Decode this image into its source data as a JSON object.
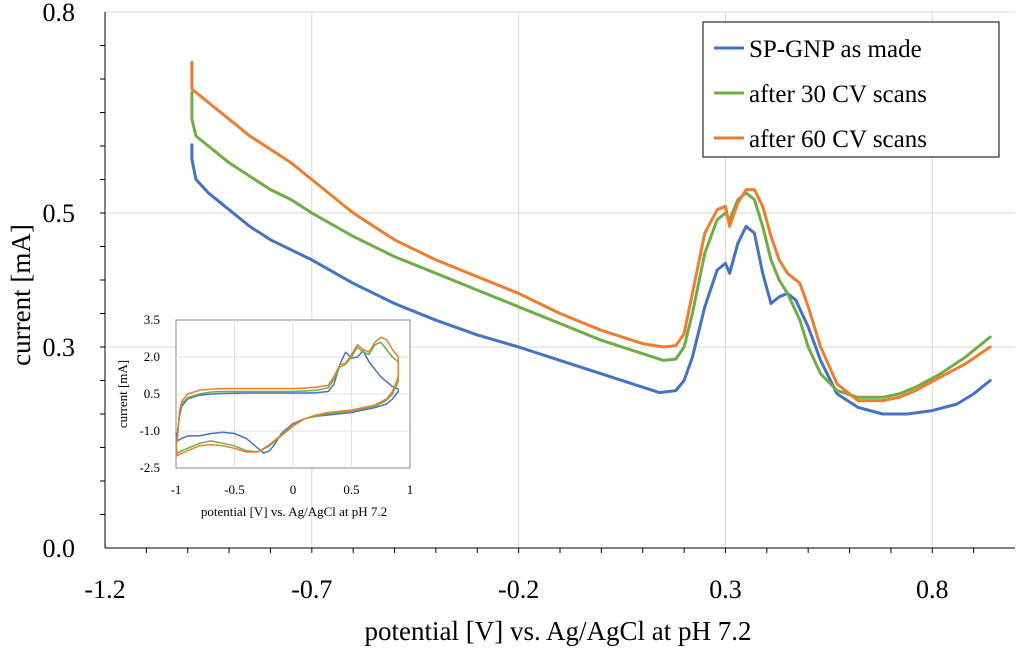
{
  "chart_data": {
    "type": "line",
    "xlabel": "potential [V] vs. Ag/AgCl at pH 7.2",
    "ylabel": "current [mA]",
    "xlim": [
      -1.2,
      1.0
    ],
    "ylim": [
      0.0,
      0.8
    ],
    "x_ticks": [
      "-1.2",
      "-0.7",
      "-0.2",
      "0.3",
      "0.8"
    ],
    "x_tick_values": [
      -1.2,
      -0.7,
      -0.2,
      0.3,
      0.8
    ],
    "y_ticks": [
      "0.0",
      "0.3",
      "0.5",
      "0.8"
    ],
    "y_tick_values": [
      0.0,
      0.3,
      0.5,
      0.8
    ],
    "grid": true,
    "legend_position": "top-right",
    "series": [
      {
        "name": "SP-GNP as made",
        "color": "#4472C4",
        "x": [
          -0.99,
          -0.99,
          -0.98,
          -0.95,
          -0.9,
          -0.85,
          -0.8,
          -0.7,
          -0.6,
          -0.5,
          -0.4,
          -0.3,
          -0.2,
          -0.1,
          0.0,
          0.1,
          0.14,
          0.18,
          0.2,
          0.22,
          0.25,
          0.28,
          0.3,
          0.31,
          0.33,
          0.35,
          0.37,
          0.39,
          0.41,
          0.43,
          0.45,
          0.47,
          0.5,
          0.53,
          0.57,
          0.62,
          0.68,
          0.74,
          0.8,
          0.86,
          0.9,
          0.94
        ],
        "y": [
          0.602,
          0.58,
          0.55,
          0.53,
          0.505,
          0.48,
          0.46,
          0.43,
          0.395,
          0.365,
          0.34,
          0.318,
          0.3,
          0.28,
          0.26,
          0.24,
          0.232,
          0.235,
          0.25,
          0.285,
          0.36,
          0.415,
          0.425,
          0.41,
          0.455,
          0.48,
          0.47,
          0.41,
          0.365,
          0.375,
          0.38,
          0.37,
          0.33,
          0.28,
          0.23,
          0.21,
          0.2,
          0.2,
          0.205,
          0.215,
          0.23,
          0.25
        ]
      },
      {
        "name": "after 30 CV scans",
        "color": "#70AD47",
        "x": [
          -0.99,
          -0.99,
          -0.98,
          -0.95,
          -0.9,
          -0.85,
          -0.8,
          -0.75,
          -0.7,
          -0.6,
          -0.5,
          -0.4,
          -0.3,
          -0.2,
          -0.1,
          0.0,
          0.1,
          0.15,
          0.18,
          0.2,
          0.22,
          0.25,
          0.28,
          0.3,
          0.31,
          0.33,
          0.35,
          0.37,
          0.39,
          0.41,
          0.43,
          0.45,
          0.48,
          0.5,
          0.53,
          0.57,
          0.62,
          0.68,
          0.72,
          0.76,
          0.82,
          0.88,
          0.94
        ],
        "y": [
          0.68,
          0.64,
          0.615,
          0.6,
          0.575,
          0.555,
          0.535,
          0.52,
          0.5,
          0.465,
          0.435,
          0.41,
          0.385,
          0.36,
          0.335,
          0.31,
          0.29,
          0.28,
          0.282,
          0.3,
          0.35,
          0.44,
          0.49,
          0.5,
          0.49,
          0.52,
          0.53,
          0.52,
          0.48,
          0.43,
          0.4,
          0.38,
          0.34,
          0.3,
          0.26,
          0.235,
          0.225,
          0.225,
          0.23,
          0.24,
          0.26,
          0.285,
          0.315
        ]
      },
      {
        "name": "after 60 CV scans",
        "color": "#ED7D31",
        "x": [
          -0.99,
          -0.99,
          -0.98,
          -0.95,
          -0.9,
          -0.85,
          -0.8,
          -0.75,
          -0.7,
          -0.6,
          -0.5,
          -0.4,
          -0.3,
          -0.2,
          -0.1,
          0.0,
          0.1,
          0.15,
          0.18,
          0.2,
          0.22,
          0.25,
          0.28,
          0.3,
          0.31,
          0.33,
          0.35,
          0.37,
          0.39,
          0.41,
          0.43,
          0.45,
          0.48,
          0.5,
          0.53,
          0.57,
          0.62,
          0.68,
          0.72,
          0.76,
          0.82,
          0.88,
          0.94
        ],
        "y": [
          0.725,
          0.685,
          0.68,
          0.665,
          0.64,
          0.615,
          0.595,
          0.575,
          0.55,
          0.5,
          0.46,
          0.43,
          0.405,
          0.38,
          0.35,
          0.325,
          0.305,
          0.3,
          0.302,
          0.32,
          0.38,
          0.47,
          0.505,
          0.51,
          0.48,
          0.515,
          0.535,
          0.535,
          0.51,
          0.465,
          0.43,
          0.41,
          0.395,
          0.36,
          0.3,
          0.245,
          0.22,
          0.22,
          0.225,
          0.235,
          0.255,
          0.275,
          0.3
        ]
      }
    ],
    "inset": {
      "xlabel": "potential [V] vs. Ag/AgCl at pH 7.2",
      "ylabel": "current [mA]",
      "xlim": [
        -1.0,
        1.0
      ],
      "ylim": [
        -2.5,
        3.5
      ],
      "x_ticks": [
        "-1",
        "-0.5",
        "0",
        "0.5",
        "1"
      ],
      "x_tick_values": [
        -1.0,
        -0.5,
        0.0,
        0.5,
        1.0
      ],
      "y_ticks": [
        "3.5",
        "2.0",
        "0.5",
        "-1.0",
        "-2.5"
      ],
      "y_tick_values": [
        3.5,
        2.0,
        0.5,
        -1.0,
        -2.5
      ],
      "series": [
        {
          "name": "SP-GNP as made",
          "color": "#4472C4",
          "x": [
            -0.99,
            -0.97,
            -0.95,
            -0.9,
            -0.8,
            -0.7,
            -0.6,
            -0.5,
            -0.4,
            -0.3,
            -0.2,
            -0.1,
            0.0,
            0.1,
            0.2,
            0.3,
            0.35,
            0.4,
            0.45,
            0.5,
            0.55,
            0.6,
            0.65,
            0.7,
            0.75,
            0.8,
            0.85,
            0.9,
            0.9,
            0.85,
            0.8,
            0.7,
            0.6,
            0.5,
            0.4,
            0.3,
            0.2,
            0.1,
            0.0,
            -0.1,
            -0.15,
            -0.2,
            -0.25,
            -0.3,
            -0.35,
            -0.4,
            -0.5,
            -0.6,
            -0.7,
            -0.8,
            -0.9,
            -0.95,
            -0.99,
            -1.0,
            -0.99
          ],
          "y": [
            -1.1,
            -0.4,
            0.0,
            0.3,
            0.45,
            0.5,
            0.52,
            0.53,
            0.54,
            0.54,
            0.54,
            0.54,
            0.54,
            0.54,
            0.55,
            0.6,
            0.9,
            1.7,
            2.2,
            1.95,
            2.0,
            2.25,
            1.8,
            1.5,
            1.2,
            1.0,
            0.8,
            0.7,
            0.6,
            0.3,
            0.1,
            -0.05,
            -0.15,
            -0.25,
            -0.3,
            -0.35,
            -0.4,
            -0.5,
            -0.7,
            -1.1,
            -1.5,
            -1.8,
            -1.9,
            -1.7,
            -1.5,
            -1.3,
            -1.1,
            -1.05,
            -1.1,
            -1.2,
            -1.2,
            -1.3,
            -1.4,
            -1.1,
            -1.1
          ]
        },
        {
          "name": "after 30 CV scans",
          "color": "#70AD47",
          "x": [
            -0.99,
            -0.97,
            -0.95,
            -0.9,
            -0.8,
            -0.7,
            -0.6,
            -0.5,
            -0.4,
            -0.3,
            -0.2,
            -0.1,
            0.0,
            0.1,
            0.2,
            0.3,
            0.35,
            0.4,
            0.45,
            0.5,
            0.55,
            0.6,
            0.65,
            0.7,
            0.75,
            0.8,
            0.85,
            0.9,
            0.9,
            0.85,
            0.8,
            0.7,
            0.6,
            0.5,
            0.4,
            0.3,
            0.2,
            0.1,
            0.0,
            -0.1,
            -0.2,
            -0.3,
            -0.4,
            -0.5,
            -0.6,
            -0.7,
            -0.8,
            -0.9,
            -0.95,
            -0.99,
            -1.0,
            -0.99
          ],
          "y": [
            -1.3,
            -0.3,
            0.1,
            0.35,
            0.5,
            0.58,
            0.6,
            0.6,
            0.6,
            0.6,
            0.6,
            0.6,
            0.6,
            0.62,
            0.65,
            0.75,
            1.1,
            1.6,
            1.7,
            2.0,
            2.4,
            2.2,
            2.1,
            2.5,
            2.6,
            2.3,
            2.0,
            1.8,
            1.0,
            0.5,
            0.25,
            0.0,
            -0.1,
            -0.2,
            -0.25,
            -0.3,
            -0.4,
            -0.5,
            -0.8,
            -1.2,
            -1.6,
            -1.85,
            -1.8,
            -1.6,
            -1.5,
            -1.4,
            -1.5,
            -1.7,
            -1.8,
            -1.9,
            -1.5,
            -1.3
          ]
        },
        {
          "name": "after 60 CV scans",
          "color": "#ED7D31",
          "x": [
            -0.99,
            -0.97,
            -0.95,
            -0.9,
            -0.8,
            -0.7,
            -0.6,
            -0.5,
            -0.4,
            -0.3,
            -0.2,
            -0.1,
            0.0,
            0.1,
            0.2,
            0.3,
            0.35,
            0.4,
            0.45,
            0.5,
            0.55,
            0.6,
            0.65,
            0.7,
            0.75,
            0.8,
            0.85,
            0.9,
            0.9,
            0.85,
            0.8,
            0.7,
            0.6,
            0.5,
            0.4,
            0.3,
            0.2,
            0.1,
            0.0,
            -0.1,
            -0.2,
            -0.3,
            -0.4,
            -0.5,
            -0.6,
            -0.7,
            -0.8,
            -0.9,
            -0.95,
            -0.99,
            -1.0,
            -0.99
          ],
          "y": [
            -1.4,
            -0.2,
            0.2,
            0.5,
            0.65,
            0.7,
            0.72,
            0.72,
            0.72,
            0.72,
            0.72,
            0.72,
            0.72,
            0.74,
            0.78,
            0.85,
            1.2,
            1.7,
            1.75,
            2.1,
            2.5,
            2.3,
            2.2,
            2.6,
            2.8,
            2.7,
            2.3,
            2.0,
            1.2,
            0.6,
            0.3,
            0.05,
            -0.05,
            -0.15,
            -0.2,
            -0.25,
            -0.35,
            -0.5,
            -0.75,
            -1.15,
            -1.55,
            -1.85,
            -1.85,
            -1.7,
            -1.6,
            -1.55,
            -1.6,
            -1.8,
            -1.9,
            -2.0,
            -1.6,
            -1.4
          ]
        }
      ]
    }
  }
}
